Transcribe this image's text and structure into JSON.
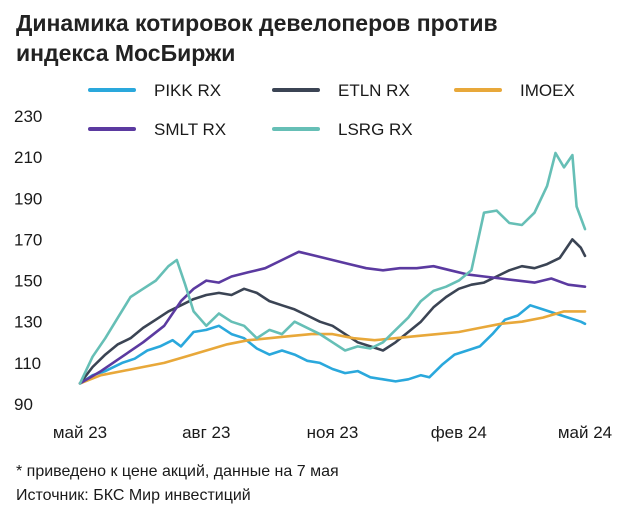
{
  "chart_data": {
    "type": "line",
    "title": "Динамика котировок девелоперов против индекса МосБиржи",
    "title_lines": [
      "Динамика котировок девелоперов против",
      "индекса МосБиржи"
    ],
    "footnote": "* приведено к цене акций, данные на 7 мая",
    "source": "Источник: БКС Мир инвестиций",
    "x_tick_labels": [
      "май 23",
      "авг 23",
      "ноя 23",
      "фев 24",
      "май 24"
    ],
    "xlim": [
      0,
      12
    ],
    "x_ticks": [
      0,
      3,
      6,
      9,
      12
    ],
    "ylim": [
      90,
      230
    ],
    "y_ticks": [
      90,
      110,
      130,
      150,
      170,
      190,
      210,
      230
    ],
    "grid": false,
    "legend_position": "top",
    "series": [
      {
        "name": "PIKK RX",
        "color": "#2aa8dc",
        "points": [
          [
            0,
            100
          ],
          [
            0.3,
            104
          ],
          [
            0.6,
            106
          ],
          [
            1.0,
            110
          ],
          [
            1.3,
            112
          ],
          [
            1.6,
            116
          ],
          [
            1.9,
            118
          ],
          [
            2.2,
            121
          ],
          [
            2.4,
            118
          ],
          [
            2.7,
            125
          ],
          [
            3.0,
            126
          ],
          [
            3.3,
            128
          ],
          [
            3.6,
            124
          ],
          [
            3.9,
            122
          ],
          [
            4.2,
            117
          ],
          [
            4.5,
            114
          ],
          [
            4.8,
            116
          ],
          [
            5.1,
            114
          ],
          [
            5.4,
            111
          ],
          [
            5.7,
            110
          ],
          [
            6.0,
            107
          ],
          [
            6.3,
            105
          ],
          [
            6.6,
            106
          ],
          [
            6.9,
            103
          ],
          [
            7.2,
            102
          ],
          [
            7.5,
            101
          ],
          [
            7.8,
            102
          ],
          [
            8.1,
            104
          ],
          [
            8.3,
            103
          ],
          [
            8.6,
            109
          ],
          [
            8.9,
            114
          ],
          [
            9.2,
            116
          ],
          [
            9.5,
            118
          ],
          [
            9.8,
            124
          ],
          [
            10.1,
            131
          ],
          [
            10.4,
            133
          ],
          [
            10.7,
            138
          ],
          [
            11.0,
            136
          ],
          [
            11.3,
            134
          ],
          [
            11.6,
            132
          ],
          [
            11.9,
            130
          ],
          [
            12.0,
            129
          ]
        ]
      },
      {
        "name": "ETLN RX",
        "color": "#3b4454",
        "points": [
          [
            0,
            100
          ],
          [
            0.3,
            108
          ],
          [
            0.6,
            114
          ],
          [
            0.9,
            119
          ],
          [
            1.2,
            122
          ],
          [
            1.5,
            127
          ],
          [
            1.8,
            131
          ],
          [
            2.1,
            135
          ],
          [
            2.4,
            138
          ],
          [
            2.7,
            141
          ],
          [
            3.0,
            143
          ],
          [
            3.3,
            144
          ],
          [
            3.6,
            143
          ],
          [
            3.9,
            146
          ],
          [
            4.2,
            144
          ],
          [
            4.5,
            140
          ],
          [
            4.8,
            138
          ],
          [
            5.1,
            136
          ],
          [
            5.4,
            133
          ],
          [
            5.7,
            130
          ],
          [
            6.0,
            128
          ],
          [
            6.3,
            124
          ],
          [
            6.6,
            120
          ],
          [
            6.9,
            118
          ],
          [
            7.2,
            116
          ],
          [
            7.5,
            120
          ],
          [
            7.8,
            125
          ],
          [
            8.1,
            130
          ],
          [
            8.4,
            137
          ],
          [
            8.7,
            142
          ],
          [
            9.0,
            146
          ],
          [
            9.3,
            148
          ],
          [
            9.6,
            149
          ],
          [
            9.9,
            152
          ],
          [
            10.2,
            155
          ],
          [
            10.5,
            157
          ],
          [
            10.8,
            156
          ],
          [
            11.1,
            158
          ],
          [
            11.4,
            161
          ],
          [
            11.7,
            170
          ],
          [
            11.9,
            166
          ],
          [
            12.0,
            162
          ]
        ]
      },
      {
        "name": "IMOEX",
        "color": "#e8a83a",
        "points": [
          [
            0,
            100
          ],
          [
            0.5,
            104
          ],
          [
            1.0,
            106
          ],
          [
            1.5,
            108
          ],
          [
            2.0,
            110
          ],
          [
            2.5,
            113
          ],
          [
            3.0,
            116
          ],
          [
            3.5,
            119
          ],
          [
            4.0,
            121
          ],
          [
            4.5,
            122
          ],
          [
            5.0,
            123
          ],
          [
            5.5,
            124
          ],
          [
            6.0,
            124
          ],
          [
            6.5,
            122
          ],
          [
            7.0,
            121
          ],
          [
            7.5,
            122
          ],
          [
            8.0,
            123
          ],
          [
            8.5,
            124
          ],
          [
            9.0,
            125
          ],
          [
            9.5,
            127
          ],
          [
            10.0,
            129
          ],
          [
            10.5,
            130
          ],
          [
            11.0,
            132
          ],
          [
            11.5,
            135
          ],
          [
            12.0,
            135
          ]
        ]
      },
      {
        "name": "SMLT RX",
        "color": "#5b3aa0",
        "points": [
          [
            0,
            100
          ],
          [
            0.5,
            106
          ],
          [
            1.0,
            113
          ],
          [
            1.5,
            120
          ],
          [
            2.0,
            128
          ],
          [
            2.4,
            140
          ],
          [
            2.7,
            146
          ],
          [
            3.0,
            150
          ],
          [
            3.3,
            149
          ],
          [
            3.6,
            152
          ],
          [
            4.0,
            154
          ],
          [
            4.4,
            156
          ],
          [
            4.8,
            160
          ],
          [
            5.2,
            164
          ],
          [
            5.6,
            162
          ],
          [
            6.0,
            160
          ],
          [
            6.4,
            158
          ],
          [
            6.8,
            156
          ],
          [
            7.2,
            155
          ],
          [
            7.6,
            156
          ],
          [
            8.0,
            156
          ],
          [
            8.4,
            157
          ],
          [
            8.8,
            155
          ],
          [
            9.2,
            153
          ],
          [
            9.6,
            152
          ],
          [
            10.0,
            151
          ],
          [
            10.4,
            150
          ],
          [
            10.8,
            149
          ],
          [
            11.2,
            151
          ],
          [
            11.6,
            148
          ],
          [
            12.0,
            147
          ]
        ]
      },
      {
        "name": "LSRG RX",
        "color": "#66bfb6",
        "points": [
          [
            0,
            100
          ],
          [
            0.3,
            113
          ],
          [
            0.6,
            122
          ],
          [
            0.9,
            132
          ],
          [
            1.2,
            142
          ],
          [
            1.5,
            146
          ],
          [
            1.8,
            150
          ],
          [
            2.1,
            157
          ],
          [
            2.3,
            160
          ],
          [
            2.5,
            148
          ],
          [
            2.7,
            135
          ],
          [
            3.0,
            128
          ],
          [
            3.3,
            134
          ],
          [
            3.6,
            130
          ],
          [
            3.9,
            128
          ],
          [
            4.2,
            122
          ],
          [
            4.5,
            126
          ],
          [
            4.8,
            124
          ],
          [
            5.1,
            130
          ],
          [
            5.4,
            127
          ],
          [
            5.7,
            124
          ],
          [
            6.0,
            120
          ],
          [
            6.3,
            116
          ],
          [
            6.6,
            118
          ],
          [
            6.9,
            117
          ],
          [
            7.2,
            120
          ],
          [
            7.5,
            126
          ],
          [
            7.8,
            132
          ],
          [
            8.1,
            140
          ],
          [
            8.4,
            145
          ],
          [
            8.7,
            147
          ],
          [
            9.0,
            150
          ],
          [
            9.3,
            155
          ],
          [
            9.6,
            183
          ],
          [
            9.9,
            184
          ],
          [
            10.2,
            178
          ],
          [
            10.5,
            177
          ],
          [
            10.8,
            183
          ],
          [
            11.1,
            196
          ],
          [
            11.3,
            212
          ],
          [
            11.5,
            205
          ],
          [
            11.7,
            211
          ],
          [
            11.8,
            186
          ],
          [
            12.0,
            175
          ]
        ]
      }
    ]
  }
}
